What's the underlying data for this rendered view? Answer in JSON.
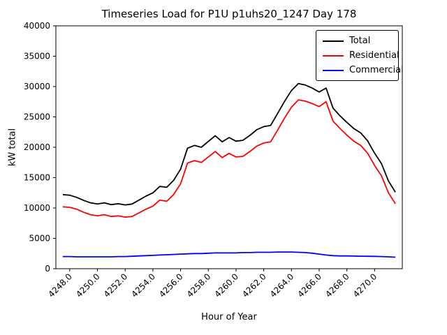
{
  "chart_data": {
    "type": "line",
    "title": "Timeseries Load for P1U p1uhs20_1247  Day 178",
    "xlabel": "Hour of Year",
    "ylabel": "kW total",
    "xlim": [
      4247.0,
      4272.0
    ],
    "ylim": [
      0,
      40000
    ],
    "grid": false,
    "legend_position": "upper right",
    "xticks": [
      4248,
      4250,
      4252,
      4254,
      4256,
      4258,
      4260,
      4262,
      4264,
      4266,
      4268,
      4270
    ],
    "xtick_labels": [
      "4248.0",
      "4250.0",
      "4252.0",
      "4254.0",
      "4256.0",
      "4258.0",
      "4260.0",
      "4262.0",
      "4264.0",
      "4266.0",
      "4268.0",
      "4270.0"
    ],
    "yticks": [
      0,
      5000,
      10000,
      15000,
      20000,
      25000,
      30000,
      35000,
      40000
    ],
    "ytick_labels": [
      "0",
      "5000",
      "10000",
      "15000",
      "20000",
      "25000",
      "30000",
      "35000",
      "40000"
    ],
    "x": [
      4247.5,
      4248.0,
      4248.5,
      4249.0,
      4249.5,
      4250.0,
      4250.5,
      4251.0,
      4251.5,
      4252.0,
      4252.5,
      4253.0,
      4253.5,
      4254.0,
      4254.5,
      4255.0,
      4255.5,
      4256.0,
      4256.5,
      4257.0,
      4257.5,
      4258.0,
      4258.5,
      4259.0,
      4259.5,
      4260.0,
      4260.5,
      4261.0,
      4261.5,
      4262.0,
      4262.5,
      4263.0,
      4263.5,
      4264.0,
      4264.5,
      4265.0,
      4265.5,
      4266.0,
      4266.5,
      4267.0,
      4267.5,
      4268.0,
      4268.5,
      4269.0,
      4269.5,
      4270.0,
      4270.5,
      4271.0,
      4271.5
    ],
    "series": [
      {
        "name": "Total",
        "color": "#000000",
        "values": [
          12200,
          12100,
          11750,
          11250,
          10850,
          10650,
          10850,
          10550,
          10700,
          10500,
          10650,
          11300,
          11950,
          12500,
          13550,
          13400,
          14550,
          16400,
          19850,
          20300,
          20000,
          20950,
          21900,
          20900,
          21600,
          21000,
          21150,
          21950,
          22900,
          23400,
          23600,
          25550,
          27550,
          29350,
          30500,
          30250,
          29750,
          29100,
          29750,
          26450,
          25200,
          24100,
          23080,
          22360,
          21050,
          19030,
          17300,
          14450,
          12600
        ]
      },
      {
        "name": "Residential",
        "color": "#ff0000",
        "values": [
          10200,
          10100,
          9800,
          9300,
          8900,
          8700,
          8900,
          8600,
          8700,
          8500,
          8600,
          9200,
          9800,
          10300,
          11300,
          11100,
          12200,
          14000,
          17400,
          17800,
          17500,
          18400,
          19300,
          18300,
          19000,
          18400,
          18500,
          19300,
          20200,
          20700,
          20900,
          22800,
          24800,
          26600,
          27800,
          27600,
          27200,
          26700,
          27500,
          24300,
          23100,
          22000,
          21000,
          20300,
          19000,
          17000,
          15300,
          12500,
          10700
        ]
      },
      {
        "name": "Commercial",
        "color": "#0000ff",
        "values": [
          2000,
          2000,
          1950,
          1950,
          1950,
          1950,
          1950,
          1950,
          2000,
          2000,
          2050,
          2100,
          2150,
          2200,
          2250,
          2300,
          2350,
          2400,
          2450,
          2500,
          2500,
          2550,
          2600,
          2600,
          2600,
          2600,
          2650,
          2650,
          2700,
          2700,
          2700,
          2750,
          2750,
          2750,
          2700,
          2650,
          2550,
          2400,
          2250,
          2150,
          2100,
          2100,
          2080,
          2060,
          2050,
          2030,
          2000,
          1950,
          1900
        ]
      }
    ]
  }
}
